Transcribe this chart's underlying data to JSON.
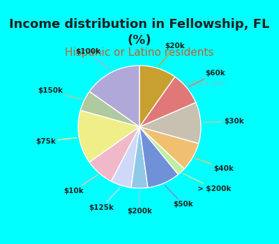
{
  "title": "Income distribution in Fellowship, FL\n(%)",
  "subtitle": "Hispanic or Latino residents",
  "labels": [
    "$100k",
    "$150k",
    "$75k",
    "$10k",
    "$125k",
    "$200k",
    "$50k",
    "> $200k",
    "$40k",
    "$30k",
    "$60k",
    "$20k"
  ],
  "sizes": [
    14,
    5,
    13,
    7,
    5,
    4,
    8,
    2,
    7,
    10,
    8,
    9
  ],
  "colors": [
    "#b0a8d8",
    "#afc9a0",
    "#f0ee88",
    "#f0b8c8",
    "#d0d8f8",
    "#90c8e8",
    "#7090d8",
    "#c0eea0",
    "#f0c070",
    "#c8c0b0",
    "#e07878",
    "#c8a030"
  ],
  "startangle": 90,
  "bg_top": "#00ffff",
  "bg_chart": "#e0f0e8",
  "title_fontsize": 13,
  "subtitle_fontsize": 11,
  "subtitle_color": "#c06030",
  "watermark": "City-Data.com",
  "label_fontsize": 7.5,
  "title_color": "#202020"
}
